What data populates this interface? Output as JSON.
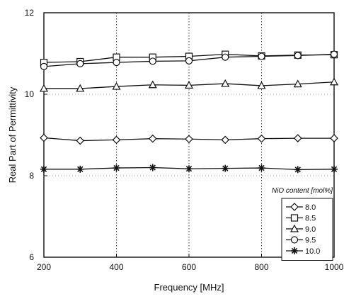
{
  "chart_data": {
    "type": "line",
    "title": "",
    "xlabel": "Frequency [MHz]",
    "ylabel": "Real Part of Permittivity",
    "xlim": [
      200,
      1000
    ],
    "ylim": [
      6,
      12
    ],
    "xticks": [
      200,
      400,
      600,
      800,
      1000
    ],
    "yticks": [
      6,
      8,
      10,
      12
    ],
    "grid": "dotted-vertical-at-major-x",
    "legend": {
      "title": "NiO content [mol%]",
      "placement": "bottom-right"
    },
    "x": [
      200,
      300,
      400,
      500,
      600,
      700,
      800,
      900,
      1000
    ],
    "series": [
      {
        "name": "8.0",
        "marker": "diamond",
        "values": [
          8.93,
          8.86,
          8.88,
          8.91,
          8.9,
          8.88,
          8.91,
          8.92,
          8.92
        ]
      },
      {
        "name": "8.5",
        "marker": "square",
        "values": [
          10.78,
          10.8,
          10.91,
          10.91,
          10.93,
          10.98,
          10.94,
          10.96,
          10.97
        ]
      },
      {
        "name": "9.0",
        "marker": "triangle",
        "values": [
          10.14,
          10.14,
          10.19,
          10.23,
          10.22,
          10.26,
          10.21,
          10.25,
          10.3
        ]
      },
      {
        "name": "9.5",
        "marker": "circle",
        "values": [
          10.68,
          10.75,
          10.78,
          10.81,
          10.82,
          10.91,
          10.93,
          10.95,
          10.98
        ]
      },
      {
        "name": "10.0",
        "marker": "asterisk",
        "values": [
          8.16,
          8.16,
          8.19,
          8.2,
          8.17,
          8.18,
          8.19,
          8.15,
          8.16
        ]
      }
    ]
  }
}
